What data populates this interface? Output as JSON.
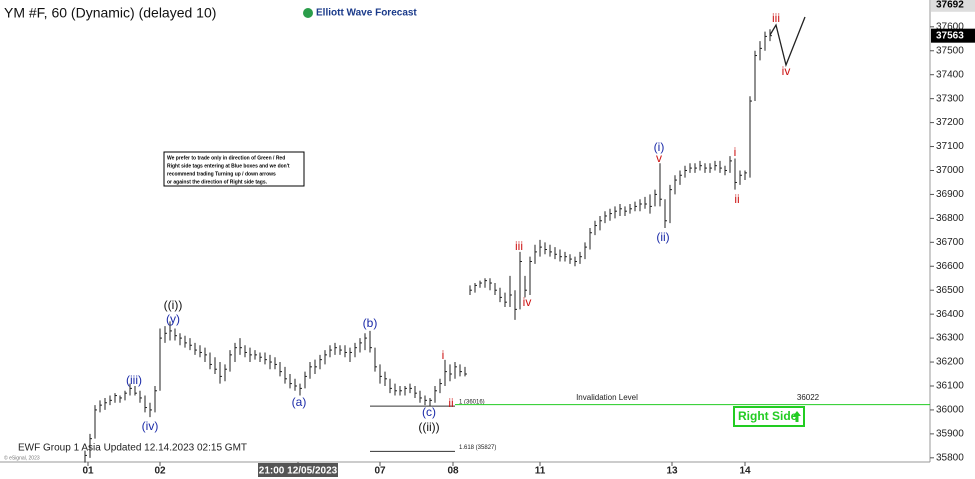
{
  "chart_data": {
    "type": "ohlc",
    "title": "YM #F, 60 (Dynamic) (delayed 10)",
    "brand": "Elliott Wave Forecast",
    "note": [
      "We prefer to trade only in direction of Green / Red",
      "Right side tags entering at Blue boxes and we don't",
      "recommend trading Turning up / down arrows",
      "or against the direction of Right side tags."
    ],
    "footer": "EWF Group 1 Asia Updated 12.14.2023 02:15 GMT",
    "copyright": "© eSignal, 2023",
    "right_side": "Right Side",
    "color": "#222222",
    "xlim": [
      0,
      186
    ],
    "ylim": [
      35770,
      37712
    ],
    "xticks": [
      {
        "value": 17.6,
        "label": "01"
      },
      {
        "value": 32,
        "label": "02"
      },
      {
        "value": 59.6,
        "label": "21:00 12/05/2023"
      },
      {
        "value": 76,
        "label": "07"
      },
      {
        "value": 90.6,
        "label": "08"
      },
      {
        "value": 108,
        "label": "11"
      },
      {
        "value": 134.4,
        "label": "13"
      },
      {
        "value": 149,
        "label": "14"
      }
    ],
    "yticks": [
      35800,
      35900,
      36000,
      36100,
      36200,
      36300,
      36400,
      36500,
      36600,
      36700,
      36800,
      36900,
      37000,
      37100,
      37200,
      37300,
      37400,
      37500,
      37600
    ],
    "last_price": 37563,
    "high_price": 37692,
    "levels": [
      {
        "label": "1 (36016)",
        "value": 36016,
        "color": "#333333"
      },
      {
        "label": "1.618 (35827)",
        "value": 35827,
        "color": "#333333"
      },
      {
        "label": "Invalidation Level",
        "value": 36022,
        "color": "#22cc22"
      }
    ],
    "waves": [
      {
        "label": "((i))",
        "color": "#111111"
      },
      {
        "label": "(y)",
        "color": "#1a2aa8"
      },
      {
        "label": "(iii)",
        "color": "#1a2aa8"
      },
      {
        "label": "(iv)",
        "color": "#1a2aa8"
      },
      {
        "label": "(a)",
        "color": "#1a2aa8"
      },
      {
        "label": "(b)",
        "color": "#1a2aa8"
      },
      {
        "label": "(c)",
        "color": "#1a2aa8"
      },
      {
        "label": "((ii))",
        "color": "#111111"
      },
      {
        "label": "i",
        "color": "#cc1111"
      },
      {
        "label": "ii",
        "color": "#cc1111"
      },
      {
        "label": "iii",
        "color": "#cc1111"
      },
      {
        "label": "iv",
        "color": "#cc1111"
      },
      {
        "label": "(i)",
        "color": "#1a2aa8"
      },
      {
        "label": "v",
        "color": "#cc1111"
      },
      {
        "label": "(ii)",
        "color": "#1a2aa8"
      },
      {
        "label": "i",
        "color": "#cc1111"
      },
      {
        "label": "ii",
        "color": "#cc1111"
      },
      {
        "label": "iii",
        "color": "#cc1111"
      },
      {
        "label": "iv",
        "color": "#cc1111"
      }
    ],
    "x": [
      17,
      18,
      19,
      20,
      21,
      22,
      23,
      24,
      25,
      26,
      27,
      28,
      29,
      30,
      31,
      32,
      33,
      34,
      35,
      36,
      37,
      38,
      39,
      40,
      41,
      42,
      43,
      44,
      45,
      46,
      47,
      48,
      49,
      50,
      51,
      52,
      53,
      54,
      55,
      56,
      57,
      58,
      59,
      60,
      61,
      62,
      63,
      64,
      65,
      66,
      67,
      68,
      69,
      70,
      71,
      72,
      73,
      74,
      75,
      76,
      77,
      78,
      79,
      80,
      81,
      82,
      83,
      84,
      85,
      86,
      87,
      88,
      89,
      90,
      91,
      92,
      93,
      94,
      95,
      96,
      97,
      98,
      99,
      100,
      101,
      102,
      103,
      104,
      105,
      106,
      107,
      108,
      109,
      110,
      111,
      112,
      113,
      114,
      115,
      116,
      117,
      118,
      119,
      120,
      121,
      122,
      123,
      124,
      125,
      126,
      127,
      128,
      129,
      130,
      131,
      132,
      133,
      134,
      135,
      136,
      137,
      138,
      139,
      140,
      141,
      142,
      143,
      144,
      145,
      146,
      147,
      148,
      149,
      150,
      151,
      152,
      153,
      154
    ],
    "high": [
      35830,
      35900,
      36020,
      36040,
      36050,
      36060,
      36070,
      36060,
      36080,
      36110,
      36100,
      36080,
      36060,
      36030,
      36100,
      36340,
      36350,
      36370,
      36340,
      36320,
      36310,
      36300,
      36280,
      36270,
      36260,
      36240,
      36220,
      36200,
      36190,
      36250,
      36280,
      36300,
      36270,
      36260,
      36250,
      36240,
      36240,
      36230,
      36220,
      36200,
      36180,
      36150,
      36130,
      36110,
      36160,
      36200,
      36210,
      36230,
      36250,
      36270,
      36280,
      36270,
      36270,
      36260,
      36280,
      36300,
      36320,
      36330,
      36260,
      36190,
      36160,
      36130,
      36110,
      36100,
      36100,
      36110,
      36100,
      36080,
      36060,
      36050,
      36100,
      36130,
      36209,
      36190,
      36200,
      36190,
      36180,
      36520,
      36530,
      36540,
      36550,
      36550,
      36530,
      36510,
      36490,
      36560,
      36500,
      36660,
      36560,
      36640,
      36690,
      36710,
      36700,
      36690,
      36680,
      36670,
      36660,
      36650,
      36640,
      36660,
      36700,
      36760,
      36790,
      36810,
      36830,
      36840,
      36850,
      36860,
      36850,
      36860,
      36870,
      36880,
      36890,
      36900,
      36920,
      37030,
      36880,
      36940,
      36980,
      37000,
      37020,
      37030,
      37030,
      37040,
      37030,
      37030,
      37040,
      37040,
      37020,
      37060,
      37050,
      37000,
      37000,
      37310,
      37500,
      37540,
      37580,
      37590
    ],
    "low": [
      35780,
      35800,
      35880,
      35990,
      36000,
      36020,
      36030,
      36030,
      36040,
      36060,
      36060,
      36030,
      35990,
      35970,
      35990,
      36080,
      36280,
      36290,
      36290,
      36270,
      36260,
      36250,
      36230,
      36220,
      36200,
      36170,
      36150,
      36110,
      36120,
      36160,
      36200,
      36230,
      36220,
      36200,
      36210,
      36200,
      36190,
      36170,
      36170,
      36140,
      36110,
      36090,
      36080,
      36060,
      36090,
      36130,
      36150,
      36170,
      36190,
      36220,
      36230,
      36230,
      36220,
      36200,
      36220,
      36240,
      36250,
      36240,
      36160,
      36110,
      36100,
      36070,
      36060,
      36060,
      36060,
      36070,
      36050,
      36030,
      36020,
      36016,
      36030,
      36070,
      36100,
      36120,
      36130,
      36140,
      36140,
      36480,
      36490,
      36510,
      36510,
      36500,
      36480,
      36450,
      36430,
      36430,
      36376,
      36420,
      36470,
      36480,
      36610,
      36640,
      36650,
      36640,
      36630,
      36620,
      36620,
      36610,
      36600,
      36610,
      36630,
      36670,
      36730,
      36750,
      36780,
      36790,
      36800,
      36810,
      36810,
      36820,
      36830,
      36830,
      36840,
      36820,
      36850,
      36850,
      36760,
      36780,
      36900,
      36940,
      36970,
      36990,
      36990,
      37000,
      36990,
      36990,
      37000,
      36990,
      36980,
      36990,
      36920,
      36940,
      36960,
      36970,
      37290,
      37460,
      37500,
      37540
    ],
    "close": [
      35810,
      35880,
      36000,
      36020,
      36030,
      36040,
      36060,
      36050,
      36070,
      36090,
      36070,
      36050,
      36010,
      36000,
      36080,
      36300,
      36320,
      36330,
      36310,
      36300,
      36280,
      36270,
      36250,
      36240,
      36230,
      36190,
      36170,
      36140,
      36170,
      36230,
      36260,
      36260,
      36240,
      36230,
      36230,
      36220,
      36210,
      36200,
      36190,
      36160,
      36130,
      36110,
      36100,
      36090,
      36140,
      36180,
      36180,
      36210,
      36230,
      36250,
      36260,
      36250,
      36240,
      36240,
      36260,
      36280,
      36300,
      36260,
      36180,
      36140,
      36130,
      36090,
      36080,
      36080,
      36090,
      36090,
      36070,
      36050,
      36040,
      36040,
      36080,
      36110,
      36160,
      36150,
      36180,
      36160,
      36150,
      36500,
      36520,
      36530,
      36540,
      36530,
      36500,
      36470,
      36450,
      36480,
      36420,
      36620,
      36500,
      36620,
      36660,
      36680,
      36670,
      36660,
      36650,
      36640,
      36640,
      36630,
      36620,
      36640,
      36680,
      36740,
      36770,
      36790,
      36810,
      36820,
      36830,
      36840,
      36830,
      36840,
      36850,
      36860,
      36860,
      36850,
      36900,
      36880,
      36790,
      36920,
      36960,
      36980,
      37000,
      37010,
      37010,
      37020,
      37010,
      37010,
      37020,
      37010,
      37000,
      37040,
      36950,
      36980,
      36990,
      37290,
      37480,
      37510,
      37560,
      37563
    ]
  }
}
